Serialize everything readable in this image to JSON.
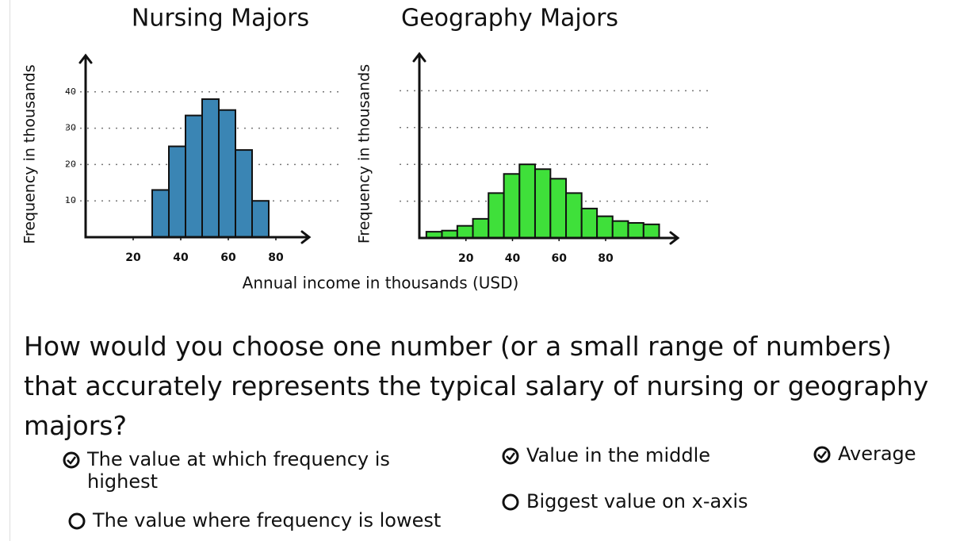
{
  "chart_data": [
    {
      "type": "histogram",
      "title": "Nursing Majors",
      "ylabel": "Frequency in thousands",
      "bins": [
        28,
        35,
        42,
        49,
        56,
        63,
        70,
        77
      ],
      "values": [
        13,
        25,
        33.5,
        38,
        35,
        24,
        10
      ],
      "color": "#3a85b4",
      "xlim": [
        0,
        94
      ],
      "xticks": [
        20,
        40,
        60,
        80
      ],
      "ylim": [
        0,
        50
      ],
      "yticks": [
        10,
        20,
        30,
        40
      ],
      "ytick_labels": true,
      "grid": true
    },
    {
      "type": "histogram",
      "title": "Geography Majors",
      "ylabel": "Frequency in thousands",
      "bins": [
        3,
        9.7,
        16.3,
        23,
        29.7,
        36.3,
        43,
        49.7,
        56.3,
        63,
        69.7,
        76.3,
        83,
        89.7,
        96.3,
        103
      ],
      "values": [
        1.7,
        2,
        3.3,
        5.2,
        12.2,
        17.4,
        20,
        18.7,
        16.1,
        12.2,
        8,
        5.9,
        4.6,
        4.1,
        3.7
      ],
      "color": "#3fe03a",
      "xlim": [
        0,
        111
      ],
      "xticks": [
        20,
        40,
        60,
        80
      ],
      "ylim": [
        0,
        50
      ],
      "yticks": [
        10,
        20,
        30,
        40
      ],
      "ytick_labels": false,
      "grid": true
    }
  ],
  "shared_xlabel": "Annual income in thousands (USD)",
  "question": "How would you choose one number (or a small range of numbers) that accurately represents the typical salary of nursing or geography majors?",
  "options": [
    {
      "label": "The value at which frequency is highest",
      "checked": true
    },
    {
      "label": "Value in the middle",
      "checked": true
    },
    {
      "label": "Average",
      "checked": true
    },
    {
      "label": "The value where frequency is lowest",
      "checked": false
    },
    {
      "label": "Biggest value on x-axis",
      "checked": false
    }
  ]
}
